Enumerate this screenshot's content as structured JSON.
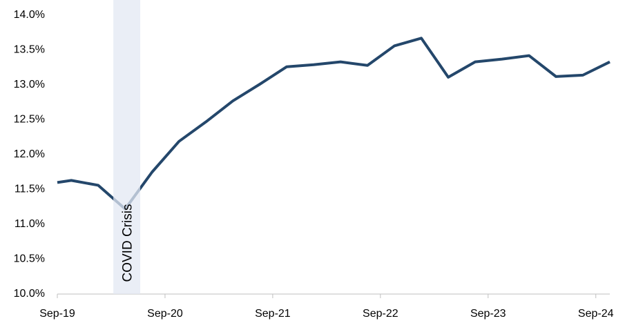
{
  "chart_data": {
    "type": "line",
    "x": [
      2019.67,
      2019.8,
      2020.05,
      2020.3,
      2020.55,
      2020.8,
      2021.05,
      2021.3,
      2021.55,
      2021.8,
      2022.05,
      2022.3,
      2022.55,
      2022.8,
      2023.05,
      2023.3,
      2023.55,
      2023.8,
      2024.05,
      2024.3,
      2024.55,
      2024.8
    ],
    "values": [
      11.6,
      11.63,
      11.56,
      11.22,
      11.75,
      12.19,
      12.47,
      12.77,
      13.01,
      13.26,
      13.29,
      13.33,
      13.28,
      13.56,
      13.67,
      13.11,
      13.33,
      13.37,
      13.42,
      13.12,
      13.14,
      13.33
    ],
    "color": "#24476b",
    "xlim": [
      2019.67,
      2024.8
    ],
    "xticks": [
      {
        "value": 2019.67,
        "label": "Sep-19"
      },
      {
        "value": 2020.67,
        "label": "Sep-20"
      },
      {
        "value": 2021.67,
        "label": "Sep-21"
      },
      {
        "value": 2022.67,
        "label": "Sep-22"
      },
      {
        "value": 2023.67,
        "label": "Sep-23"
      },
      {
        "value": 2024.67,
        "label": "Sep-24"
      }
    ],
    "ylim": [
      10,
      14
    ],
    "yticks": [
      {
        "value": 10,
        "label": "10.0%"
      },
      {
        "value": 10.5,
        "label": "10.5%"
      },
      {
        "value": 11,
        "label": "11.0%"
      },
      {
        "value": 11.5,
        "label": "11.5%"
      },
      {
        "value": 12,
        "label": "12.0%"
      },
      {
        "value": 12.5,
        "label": "12.5%"
      },
      {
        "value": 13,
        "label": "13.0%"
      },
      {
        "value": 13.5,
        "label": "13.5%"
      },
      {
        "value": 14,
        "label": "14.0%"
      }
    ],
    "grid": false,
    "shade": {
      "x0": 2020.19,
      "x1": 2020.44,
      "label": "COVID Crisis",
      "color": "#e3e8f3"
    }
  }
}
